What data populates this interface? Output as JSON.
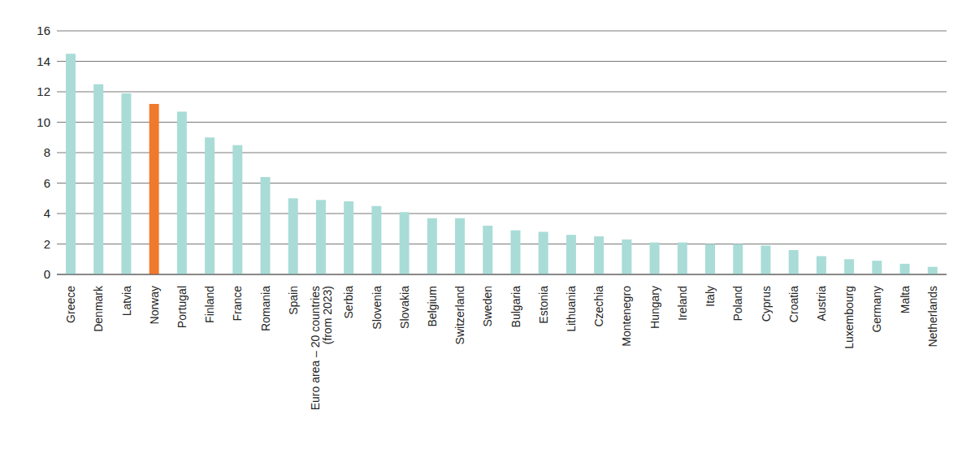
{
  "chart_data": {
    "type": "bar",
    "categories": [
      "Greece",
      "Denmark",
      "Latvia",
      "Norway",
      "Portugal",
      "Finland",
      "France",
      "Romania",
      "Spain",
      "Euro area – 20 countries (from 2023)",
      "Serbia",
      "Slovenia",
      "Slovakia",
      "Belgium",
      "Switzerland",
      "Sweden",
      "Bulgaria",
      "Estonia",
      "Lithuania",
      "Czechia",
      "Montenegro",
      "Hungary",
      "Ireland",
      "Italy",
      "Poland",
      "Cyprus",
      "Croatia",
      "Austria",
      "Luxembourg",
      "Germany",
      "Malta",
      "Netherlands"
    ],
    "values": [
      14.5,
      12.5,
      11.9,
      11.2,
      10.7,
      9.0,
      8.5,
      6.4,
      5.0,
      4.9,
      4.8,
      4.5,
      4.1,
      3.7,
      3.7,
      3.2,
      2.9,
      2.8,
      2.6,
      2.5,
      2.3,
      2.1,
      2.1,
      2.0,
      2.0,
      1.9,
      1.6,
      1.2,
      1.0,
      0.9,
      0.7,
      0.5
    ],
    "colors": [
      "#a9dcd7",
      "#a9dcd7",
      "#a9dcd7",
      "#f07a2c",
      "#a9dcd7",
      "#a9dcd7",
      "#a9dcd7",
      "#a9dcd7",
      "#a9dcd7",
      "#a9dcd7",
      "#a9dcd7",
      "#a9dcd7",
      "#a9dcd7",
      "#a9dcd7",
      "#a9dcd7",
      "#a9dcd7",
      "#a9dcd7",
      "#a9dcd7",
      "#a9dcd7",
      "#a9dcd7",
      "#a9dcd7",
      "#a9dcd7",
      "#a9dcd7",
      "#a9dcd7",
      "#a9dcd7",
      "#a9dcd7",
      "#a9dcd7",
      "#a9dcd7",
      "#a9dcd7",
      "#a9dcd7",
      "#a9dcd7",
      "#a9dcd7"
    ],
    "ylim": [
      0,
      16
    ],
    "yticks": [
      0,
      2,
      4,
      6,
      8,
      10,
      12,
      14,
      16
    ],
    "grid": true
  }
}
